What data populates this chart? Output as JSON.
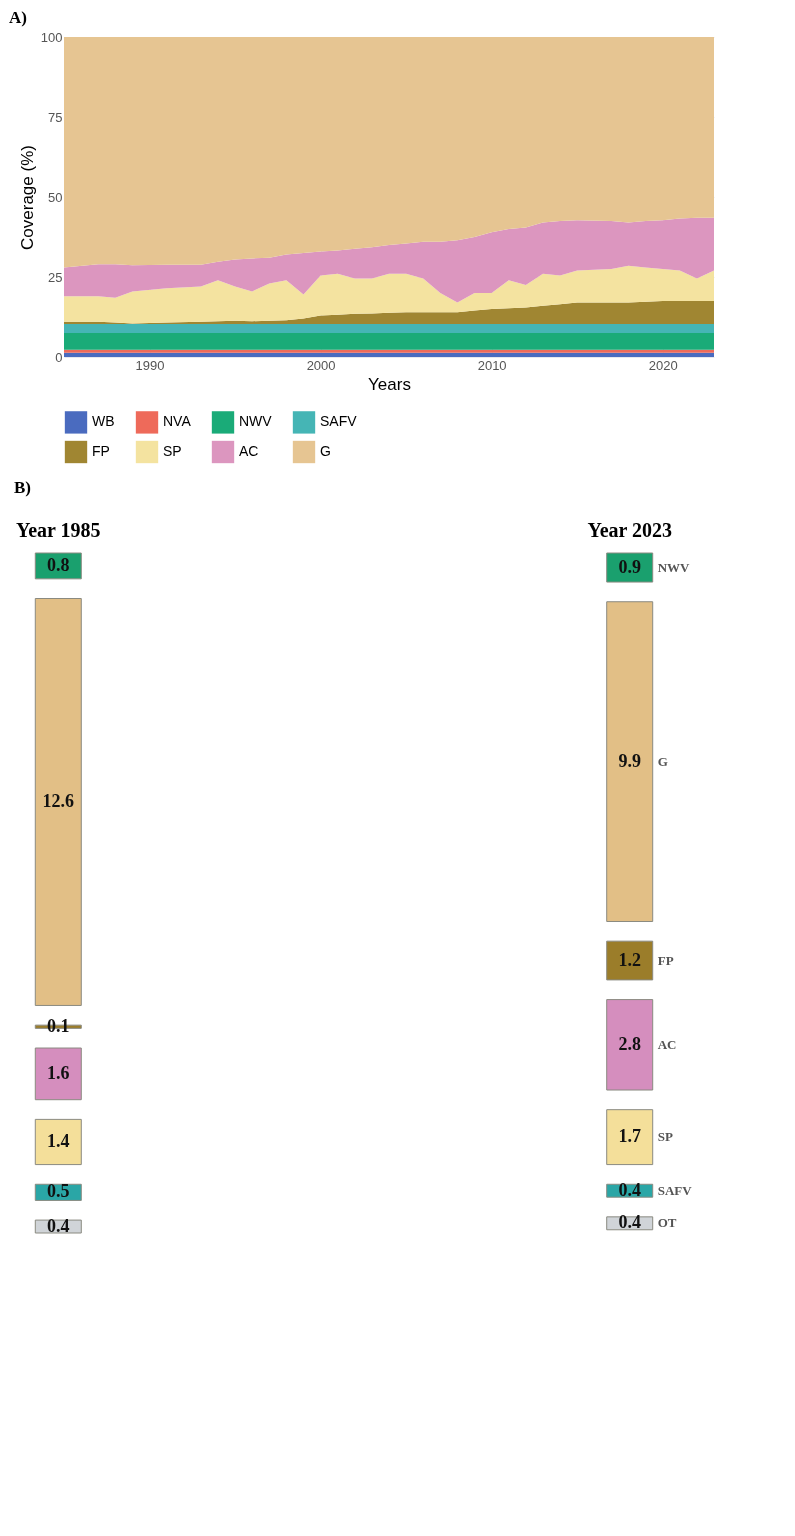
{
  "chart_data": [
    {
      "type": "area",
      "title": "A)",
      "xlabel": "Years",
      "ylabel": "Coverage (%)",
      "stacked": true,
      "grid": true,
      "legend": "bottom",
      "x": [
        1985,
        1987,
        1988,
        1989,
        1991,
        1993,
        1994,
        1995,
        1996,
        1997,
        1998,
        1999,
        2000,
        2001,
        2002,
        2003,
        2004,
        2005,
        2006,
        2007,
        2008,
        2009,
        2010,
        2011,
        2012,
        2013,
        2014,
        2015,
        2017,
        2018,
        2019,
        2020,
        2021,
        2022,
        2023
      ],
      "xlim": [
        1985,
        2023
      ],
      "xticks": [
        1990,
        2000,
        2010,
        2020
      ],
      "ylim": [
        0,
        100
      ],
      "yticks": [
        0,
        25,
        50,
        75,
        100
      ],
      "series": [
        {
          "name": "WB",
          "color": "#4a6bbf",
          "values": [
            1.3,
            1.3,
            1.3,
            1.3,
            1.3,
            1.3,
            1.3,
            1.3,
            1.3,
            1.3,
            1.3,
            1.3,
            1.3,
            1.3,
            1.3,
            1.3,
            1.3,
            1.3,
            1.3,
            1.3,
            1.3,
            1.3,
            1.3,
            1.3,
            1.3,
            1.3,
            1.3,
            1.3,
            1.3,
            1.3,
            1.3,
            1.3,
            1.3,
            1.3,
            1.3
          ]
        },
        {
          "name": "NVA",
          "color": "#ee6a5a",
          "values": [
            1.0,
            1.0,
            1.0,
            1.0,
            1.0,
            1.0,
            1.0,
            1.0,
            1.0,
            1.0,
            1.0,
            1.0,
            1.0,
            1.0,
            1.0,
            1.0,
            1.0,
            1.0,
            1.0,
            1.0,
            1.0,
            1.0,
            1.0,
            1.0,
            1.0,
            1.0,
            1.0,
            1.0,
            1.0,
            1.0,
            1.0,
            1.0,
            1.0,
            1.0,
            1.0
          ]
        },
        {
          "name": "NWV",
          "color": "#1aab78",
          "values": [
            5.2,
            5.2,
            5.2,
            5.2,
            5.2,
            5.2,
            5.2,
            5.2,
            5.2,
            5.2,
            5.2,
            5.2,
            5.2,
            5.2,
            5.2,
            5.2,
            5.2,
            5.2,
            5.2,
            5.2,
            5.2,
            5.2,
            5.2,
            5.2,
            5.2,
            5.2,
            5.2,
            5.2,
            5.2,
            5.2,
            5.2,
            5.2,
            5.2,
            5.2,
            5.2
          ]
        },
        {
          "name": "SAFV",
          "color": "#45b5b5",
          "values": [
            2.8,
            2.8,
            2.8,
            2.8,
            2.8,
            2.8,
            2.8,
            2.8,
            2.8,
            2.8,
            2.8,
            2.8,
            2.8,
            2.8,
            2.8,
            2.8,
            2.8,
            2.8,
            2.8,
            2.8,
            2.8,
            2.8,
            2.8,
            2.8,
            2.8,
            2.8,
            2.8,
            2.8,
            2.8,
            2.8,
            2.8,
            2.8,
            2.8,
            2.8,
            2.8
          ]
        },
        {
          "name": "FP",
          "color": "#a08632",
          "values": [
            0.7,
            0.7,
            0.5,
            0.2,
            0.5,
            0.7,
            0.9,
            1.0,
            0.9,
            1.0,
            1.2,
            1.7,
            2.7,
            2.9,
            3.2,
            3.3,
            3.5,
            3.7,
            3.7,
            3.7,
            3.7,
            4.2,
            4.7,
            4.9,
            5.2,
            5.7,
            6.2,
            6.7,
            6.7,
            6.7,
            7.0,
            7.2,
            7.2,
            7.2,
            7.2
          ]
        },
        {
          "name": "SP",
          "color": "#f4e3a0",
          "values": [
            8,
            8,
            7.7,
            10,
            10.7,
            11,
            12.8,
            10.7,
            9.3,
            11.7,
            12.5,
            7.5,
            12.5,
            12.8,
            11,
            10.9,
            12.2,
            12,
            10.5,
            6,
            3,
            5.5,
            5,
            8.8,
            7,
            10,
            9,
            10,
            10.5,
            11.5,
            10.7,
            10,
            9.5,
            7,
            9.5
          ]
        },
        {
          "name": "AC",
          "color": "#dc96bf",
          "values": [
            9,
            10,
            10.5,
            8.2,
            7.3,
            6.8,
            5.8,
            8.5,
            10.3,
            8,
            8,
            13,
            7.5,
            7.3,
            9.3,
            9.8,
            9,
            9.5,
            11.5,
            16,
            19.5,
            17.5,
            19,
            16,
            18,
            16,
            17,
            15.7,
            15,
            13.5,
            14.5,
            15.2,
            16.3,
            19,
            16.5
          ]
        },
        {
          "name": "G",
          "color": "#e6c592",
          "values": [
            72,
            71,
            71,
            71.3,
            71.2,
            71.2,
            70.2,
            69.5,
            69.2,
            69,
            68,
            67.5,
            67,
            66.7,
            66.2,
            65.7,
            65,
            64.5,
            64,
            64,
            63.5,
            62.5,
            61,
            60,
            59.5,
            58,
            57.5,
            57.3,
            57.5,
            58,
            57.5,
            57.3,
            56.7,
            56.5,
            56.5
          ]
        }
      ]
    },
    {
      "type": "other",
      "title": "B)",
      "data_labels": true,
      "categories": [
        "NWV",
        "G",
        "FP",
        "AC",
        "SP",
        "SAFV",
        "OT"
      ],
      "series": [
        {
          "name": "Year 1985",
          "colors": [
            "#1aa06e",
            "#e2bf86",
            "#9b7d2a",
            "#d58ebe",
            "#f4df9a",
            "#2aa6a6",
            "#d0d4d8"
          ],
          "values": [
            0.8,
            12.6,
            0.1,
            1.6,
            1.4,
            0.5,
            0.4
          ]
        },
        {
          "name": "Year 2023",
          "colors": [
            "#1aa06e",
            "#e2bf86",
            "#9b7d2a",
            "#d58ebe",
            "#f4df9a",
            "#2aa6a6",
            "#d0d4d8"
          ],
          "values": [
            0.9,
            9.9,
            1.2,
            2.8,
            1.7,
            0.4,
            0.4
          ]
        }
      ]
    }
  ]
}
